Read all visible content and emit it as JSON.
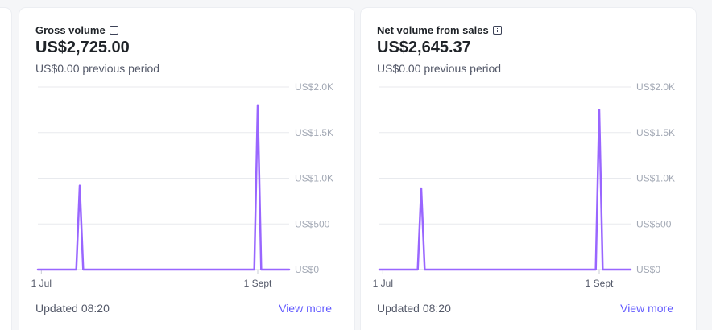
{
  "cards": [
    {
      "title": "Gross volume",
      "value": "US$2,725.00",
      "previous": "US$0.00 previous period",
      "updated": "Updated 08:20",
      "link_label": "View more",
      "chart_data": {
        "type": "line",
        "x": [
          "2024-06-30",
          "2024-07-01",
          "2024-07-11",
          "2024-07-12",
          "2024-07-13",
          "2024-08-29",
          "2024-08-30",
          "2024-08-31",
          "2024-09-01",
          "2024-09-02",
          "2024-09-10"
        ],
        "series": [
          {
            "values": [
              0,
              0,
              0,
              920,
              0,
              0,
              0,
              0,
              1800,
              0,
              0
            ]
          }
        ],
        "ytick_values": [
          0,
          500,
          1000,
          1500,
          2000
        ],
        "ytick_labels": [
          "US$0",
          "US$500",
          "US$1.0K",
          "US$1.5K",
          "US$2.0K"
        ],
        "xtick_values": [
          "2024-07-01",
          "2024-09-01"
        ],
        "xtick_labels": [
          "1 Jul",
          "1 Sept"
        ],
        "ylim": [
          0,
          2000
        ],
        "grid": true,
        "color": "#9966ff"
      }
    },
    {
      "title": "Net volume from sales",
      "value": "US$2,645.37",
      "previous": "US$0.00 previous period",
      "updated": "Updated 08:20",
      "link_label": "View more",
      "chart_data": {
        "type": "line",
        "x": [
          "2024-06-30",
          "2024-07-01",
          "2024-07-11",
          "2024-07-12",
          "2024-07-13",
          "2024-08-29",
          "2024-08-30",
          "2024-08-31",
          "2024-09-01",
          "2024-09-02",
          "2024-09-10"
        ],
        "series": [
          {
            "values": [
              0,
              0,
              0,
              890,
              0,
              0,
              0,
              0,
              1750,
              0,
              0
            ]
          }
        ],
        "ytick_values": [
          0,
          500,
          1000,
          1500,
          2000
        ],
        "ytick_labels": [
          "US$0",
          "US$500",
          "US$1.0K",
          "US$1.5K",
          "US$2.0K"
        ],
        "xtick_values": [
          "2024-07-01",
          "2024-09-01"
        ],
        "xtick_labels": [
          "1 Jul",
          "1 Sept"
        ],
        "ylim": [
          0,
          2000
        ],
        "grid": true,
        "color": "#9966ff"
      }
    }
  ]
}
